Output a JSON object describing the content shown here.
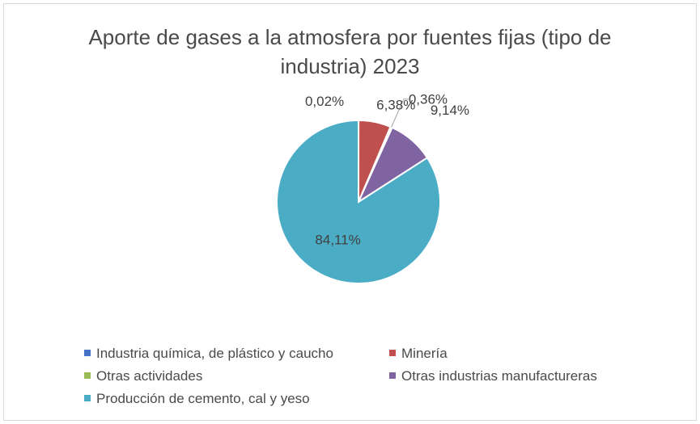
{
  "chart_data": {
    "type": "pie",
    "title_line1": "Aporte de gases a la atmosfera por fuentes fijas (tipo de",
    "title_line2": "industria) 2023",
    "categories": [
      "Industria química, de plástico y caucho",
      "Minería",
      "Otras actividades",
      "Otras industrias manufactureras",
      "Producción de cemento, cal y yeso"
    ],
    "values": [
      0.02,
      6.38,
      0.36,
      9.14,
      84.11
    ],
    "labels": [
      "0,02%",
      "6,38%",
      "0,36%",
      "9,14%",
      "84,11%"
    ],
    "colors": [
      "#4472c4",
      "#c0504d",
      "#9bbb59",
      "#8064a2",
      "#4bacc6"
    ],
    "legend_position": "bottom"
  }
}
